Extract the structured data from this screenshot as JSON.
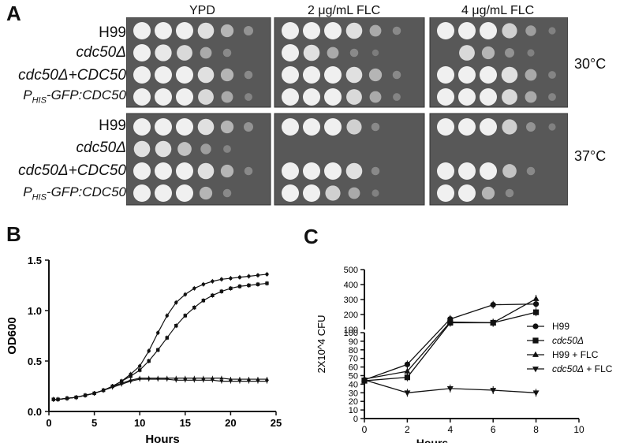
{
  "panelA": {
    "letter": "A",
    "columns": [
      "YPD",
      "2 μg/mL  FLC",
      "4 μg/mL  FLC"
    ],
    "strains": [
      {
        "label": "H99",
        "italic": false
      },
      {
        "label": "cdc50Δ",
        "italic": true
      },
      {
        "label": "cdc50Δ+CDC50",
        "italic": true
      },
      {
        "label_p": "P",
        "label_sub": "HIS",
        "label_rest": "-GFP:CDC50",
        "italic": true
      }
    ],
    "temps": [
      "30°C",
      "37°C"
    ],
    "spot_growth_30": [
      [
        [
          1,
          1,
          1,
          0.9,
          0.6,
          0.3
        ],
        [
          1,
          1,
          1,
          0.9,
          0.5,
          0.2
        ],
        [
          1,
          1,
          1,
          0.8,
          0.4,
          0.1
        ]
      ],
      [
        [
          1,
          0.95,
          0.85,
          0.5,
          0.2,
          0
        ],
        [
          1,
          0.9,
          0.5,
          0.2,
          0.05,
          0
        ],
        [
          0,
          0.85,
          0.6,
          0.3,
          0.1,
          0
        ]
      ],
      [
        [
          1,
          1,
          1,
          0.9,
          0.6,
          0.2
        ],
        [
          1,
          1,
          1,
          0.9,
          0.6,
          0.2
        ],
        [
          1,
          1,
          1,
          0.9,
          0.5,
          0.15
        ]
      ],
      [
        [
          1,
          1,
          1,
          0.85,
          0.5,
          0.15
        ],
        [
          1,
          1,
          1,
          0.85,
          0.5,
          0.15
        ],
        [
          1,
          1,
          1,
          0.85,
          0.5,
          0.15
        ]
      ]
    ],
    "spot_growth_37": [
      [
        [
          1,
          1,
          1,
          0.9,
          0.6,
          0.3
        ],
        [
          1,
          1,
          1,
          0.8,
          0.2,
          0
        ],
        [
          1,
          1,
          1,
          0.8,
          0.3,
          0.1
        ]
      ],
      [
        [
          0.9,
          0.9,
          0.7,
          0.4,
          0.15,
          0
        ],
        [
          0,
          0,
          0,
          0,
          0,
          0
        ],
        [
          0,
          0,
          0,
          0,
          0,
          0
        ]
      ],
      [
        [
          1,
          1,
          1,
          0.9,
          0.6,
          0.2
        ],
        [
          1,
          1,
          1,
          0.9,
          0.2,
          0
        ],
        [
          1,
          1,
          1,
          0.7,
          0.2,
          0
        ]
      ],
      [
        [
          1,
          1,
          1,
          0.6,
          0.2,
          0
        ],
        [
          1,
          1,
          0.8,
          0.5,
          0.1,
          0
        ],
        [
          1,
          1,
          0.6,
          0.2,
          0,
          0
        ]
      ]
    ]
  },
  "panelB": {
    "letter": "B",
    "chart_data": {
      "type": "line",
      "xlabel": "Hours",
      "ylabel": "OD600",
      "xlim": [
        0,
        25
      ],
      "ylim": [
        0.0,
        1.5
      ],
      "xticks": [
        "0",
        "5",
        "10",
        "15",
        "20",
        "25"
      ],
      "yticks": [
        "0.0",
        "0.5",
        "1.0",
        "1.5"
      ],
      "series": [
        {
          "marker": "circle",
          "x": [
            0.5,
            1,
            2,
            3,
            4,
            5,
            6,
            7,
            8,
            9,
            10,
            11,
            12,
            13,
            14,
            15,
            16,
            17,
            18,
            19,
            20,
            21,
            22,
            23,
            24
          ],
          "values": [
            0.12,
            0.12,
            0.13,
            0.14,
            0.16,
            0.18,
            0.21,
            0.25,
            0.3,
            0.37,
            0.45,
            0.6,
            0.78,
            0.95,
            1.08,
            1.16,
            1.22,
            1.26,
            1.29,
            1.31,
            1.32,
            1.33,
            1.34,
            1.35,
            1.36
          ]
        },
        {
          "marker": "square",
          "x": [
            0.5,
            1,
            2,
            3,
            4,
            5,
            6,
            7,
            8,
            9,
            10,
            11,
            12,
            13,
            14,
            15,
            16,
            17,
            18,
            19,
            20,
            21,
            22,
            23,
            24
          ],
          "values": [
            0.12,
            0.12,
            0.13,
            0.14,
            0.16,
            0.18,
            0.21,
            0.25,
            0.3,
            0.35,
            0.41,
            0.5,
            0.61,
            0.73,
            0.85,
            0.95,
            1.03,
            1.1,
            1.15,
            1.19,
            1.22,
            1.24,
            1.25,
            1.26,
            1.27
          ]
        },
        {
          "marker": "triangle-up",
          "x": [
            0.5,
            1,
            2,
            3,
            4,
            5,
            6,
            7,
            8,
            9,
            10,
            11,
            12,
            13,
            14,
            15,
            16,
            17,
            18,
            19,
            20,
            21,
            22,
            23,
            24
          ],
          "values": [
            0.12,
            0.12,
            0.13,
            0.14,
            0.16,
            0.18,
            0.21,
            0.25,
            0.28,
            0.31,
            0.33,
            0.33,
            0.33,
            0.33,
            0.33,
            0.33,
            0.33,
            0.33,
            0.33,
            0.33,
            0.32,
            0.32,
            0.32,
            0.32,
            0.32
          ]
        },
        {
          "marker": "triangle-down",
          "x": [
            0.5,
            1,
            2,
            3,
            4,
            5,
            6,
            7,
            8,
            9,
            10,
            11,
            12,
            13,
            14,
            15,
            16,
            17,
            18,
            19,
            20,
            21,
            22,
            23,
            24
          ],
          "values": [
            0.12,
            0.12,
            0.13,
            0.14,
            0.16,
            0.18,
            0.21,
            0.24,
            0.27,
            0.3,
            0.32,
            0.32,
            0.32,
            0.32,
            0.31,
            0.31,
            0.31,
            0.31,
            0.31,
            0.3,
            0.3,
            0.3,
            0.3,
            0.3,
            0.3
          ]
        }
      ]
    }
  },
  "panelC": {
    "letter": "C",
    "chart_data": {
      "type": "line",
      "xlabel": "Hours",
      "ylabel": "2X10^4 CFU",
      "xlim": [
        0,
        10
      ],
      "ylim_lower": [
        0,
        100
      ],
      "ylim_upper": [
        100,
        500
      ],
      "xticks": [
        "0",
        "2",
        "4",
        "6",
        "8",
        "10"
      ],
      "yticks_lower": [
        "0",
        "10",
        "20",
        "30",
        "40",
        "50",
        "60",
        "70",
        "80",
        "90",
        "100"
      ],
      "yticks_upper": [
        "100",
        "200",
        "300",
        "400",
        "500"
      ],
      "series": [
        {
          "name": "H99",
          "marker": "circle",
          "x": [
            0,
            2,
            4,
            6,
            8
          ],
          "values": [
            45,
            63,
            170,
            265,
            270
          ]
        },
        {
          "name": "cdc50Δ",
          "italic": true,
          "marker": "square",
          "x": [
            0,
            2,
            4,
            6,
            8
          ],
          "values": [
            44,
            48,
            145,
            145,
            215
          ]
        },
        {
          "name": "H99 + FLC",
          "marker": "triangle-up",
          "x": [
            0,
            2,
            4,
            6,
            8
          ],
          "values": [
            46,
            55,
            150,
            145,
            305
          ]
        },
        {
          "name": "cdc50Δ + FLC",
          "italic_part": "cdc50Δ",
          "rest": " + FLC",
          "marker": "triangle-down",
          "x": [
            0,
            2,
            4,
            6,
            8
          ],
          "values": [
            45,
            30,
            35,
            33,
            30
          ]
        }
      ]
    }
  }
}
